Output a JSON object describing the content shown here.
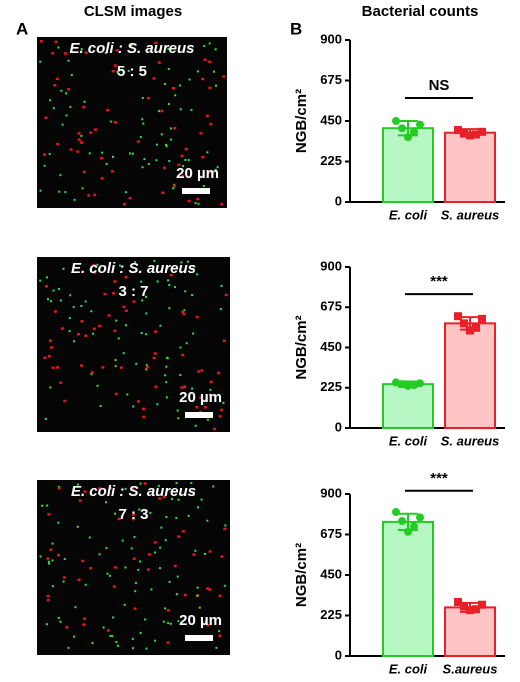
{
  "labels": {
    "a": "A",
    "b": "B",
    "left_title": "CLSM images",
    "right_title": "Bacterial counts"
  },
  "images": [
    {
      "title": "E. coli : S. aureus",
      "ratio": "5 : 5",
      "scale": "20 µm"
    },
    {
      "title": "E. coli : S. aureus",
      "ratio": "3 : 7",
      "scale": "20 µm"
    },
    {
      "title": "E. coli : S. aureus",
      "ratio": "7 : 3",
      "scale": "20 µm"
    }
  ],
  "chart_data": [
    {
      "type": "bar",
      "ylabel": "NGB/cm²",
      "categories": [
        "E. coli",
        "S. aureus"
      ],
      "values": [
        410,
        385
      ],
      "errors": [
        40,
        20
      ],
      "points": [
        [
          450,
          430,
          410,
          390,
          360
        ],
        [
          400,
          390,
          380,
          375,
          370
        ]
      ],
      "colors": [
        "#22cc22",
        "#e8202a"
      ],
      "fills": [
        "#b6f7c4",
        "#ffc4c4"
      ],
      "ylim": [
        0,
        900
      ],
      "yticks": [
        0,
        225,
        450,
        675,
        900
      ],
      "annotation": "NS"
    },
    {
      "type": "bar",
      "ylabel": "NGB/cm²",
      "categories": [
        "E. coli",
        "S. aureus"
      ],
      "values": [
        245,
        585
      ],
      "errors": [
        15,
        35
      ],
      "points": [
        [
          255,
          250,
          245,
          240,
          235
        ],
        [
          625,
          610,
          585,
          560,
          545
        ]
      ],
      "colors": [
        "#22cc22",
        "#e8202a"
      ],
      "fills": [
        "#b6f7c4",
        "#ffc4c4"
      ],
      "ylim": [
        0,
        900
      ],
      "yticks": [
        0,
        225,
        450,
        675,
        900
      ],
      "annotation": "***"
    },
    {
      "type": "bar",
      "ylabel": "NGB/cm²",
      "categories": [
        "E. coli",
        "S.aureus"
      ],
      "values": [
        745,
        270
      ],
      "errors": [
        45,
        25
      ],
      "points": [
        [
          800,
          770,
          750,
          720,
          690
        ],
        [
          300,
          285,
          275,
          260,
          255
        ]
      ],
      "colors": [
        "#22cc22",
        "#e8202a"
      ],
      "fills": [
        "#b6f7c4",
        "#ffc4c4"
      ],
      "ylim": [
        0,
        900
      ],
      "yticks": [
        0,
        225,
        450,
        675,
        900
      ],
      "annotation": "***"
    }
  ]
}
